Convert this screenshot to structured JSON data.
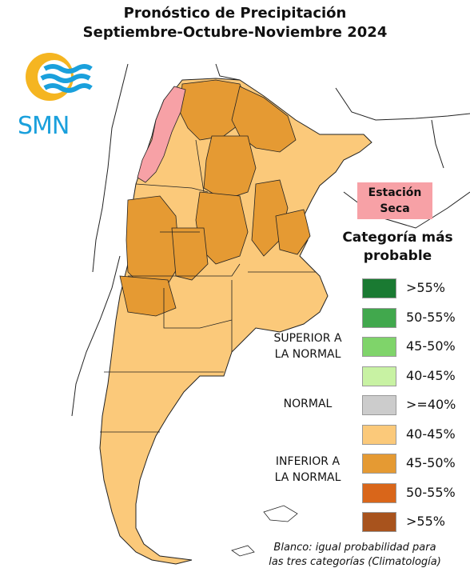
{
  "title": {
    "line1": "Pronóstico de Precipitación",
    "line2": "Septiembre-Octubre-Noviembre 2024"
  },
  "logo": {
    "text": "SMN",
    "colors": {
      "sun": "#f5b521",
      "waves": "#1aa0dc"
    }
  },
  "dry_season": {
    "label_line1": "Estación",
    "label_line2": "Seca",
    "color": "#f7a1a6"
  },
  "legend": {
    "title_line1": "Categoría más",
    "title_line2": "probable",
    "items": [
      {
        "label": ">55%",
        "color": "#1a7a32"
      },
      {
        "label": "50-55%",
        "color": "#41a84d"
      },
      {
        "label": "45-50%",
        "color": "#7fd46a"
      },
      {
        "label": "40-45%",
        "color": "#c8f2a3"
      },
      {
        "label": ">=40%",
        "color": "#cccccc"
      },
      {
        "label": "40-45%",
        "color": "#fbc97a"
      },
      {
        "label": "45-50%",
        "color": "#e59a33"
      },
      {
        "label": "50-55%",
        "color": "#d9661a"
      },
      {
        "label": ">55%",
        "color": "#a8531d"
      }
    ],
    "groups": {
      "superior_line1": "SUPERIOR A",
      "superior_line2": "LA NORMAL",
      "normal": "NORMAL",
      "inferior_line1": "INFERIOR A",
      "inferior_line2": "LA NORMAL"
    }
  },
  "note": {
    "line1": "Blanco: igual probabilidad para",
    "line2": "las tres categorías (Climatología)"
  },
  "map": {
    "fill_light": "#fbc97a",
    "fill_medium": "#e59a33",
    "fill_dry": "#f7a1a6",
    "border": "#222222"
  }
}
